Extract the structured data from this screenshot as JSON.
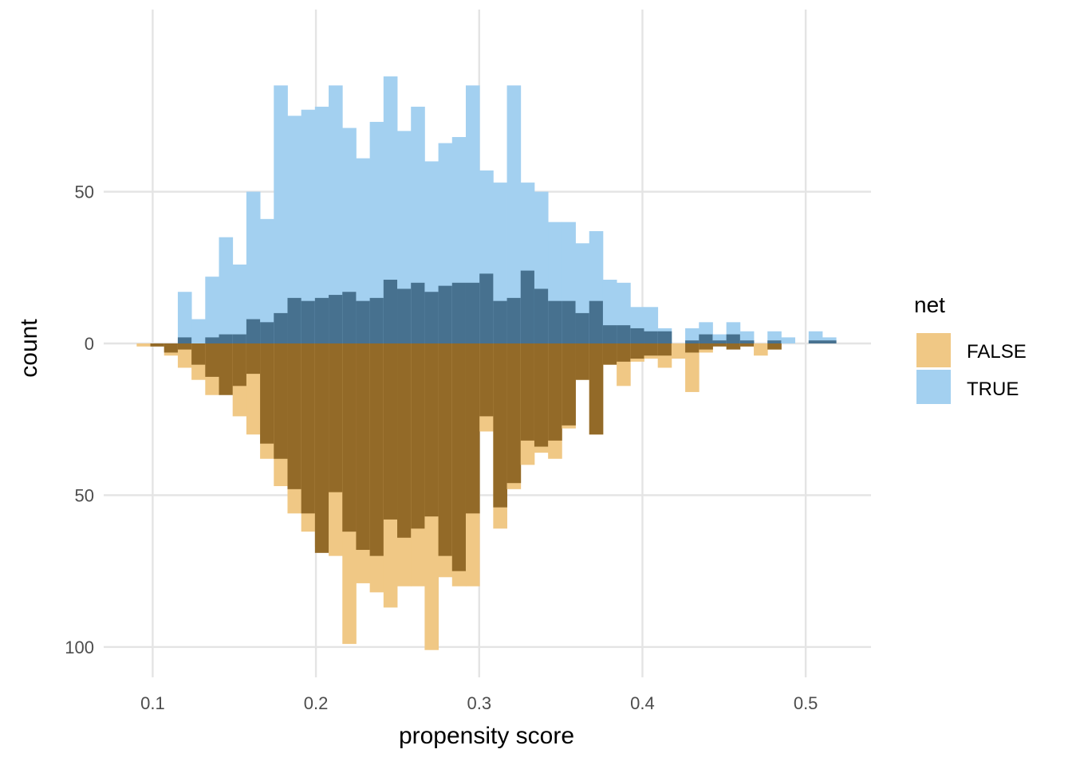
{
  "chart_data": {
    "type": "histogram-mirrored",
    "xlabel": "propensity score",
    "ylabel": "count",
    "xlim": [
      0.07,
      0.54
    ],
    "ylim": [
      -110,
      110
    ],
    "x_ticks": [
      0.1,
      0.2,
      0.3,
      0.4,
      0.5
    ],
    "x_tick_labels": [
      "0.1",
      "0.2",
      "0.3",
      "0.4",
      "0.5"
    ],
    "y_ticks": [
      50,
      0,
      -50,
      -100
    ],
    "y_tick_labels": [
      "50",
      "0",
      "50",
      "100"
    ],
    "grid": true,
    "legend": {
      "title": "net",
      "position": "right",
      "entries": [
        {
          "label": "FALSE",
          "color": "#E69F00"
        },
        {
          "label": "TRUE",
          "color": "#56B4E9"
        }
      ]
    },
    "bin_width": 0.0084,
    "bin_left_edges": [
      0.0902,
      0.0986,
      0.107,
      0.1154,
      0.1238,
      0.1322,
      0.1406,
      0.149,
      0.1574,
      0.1658,
      0.1742,
      0.1826,
      0.191,
      0.1994,
      0.2078,
      0.2162,
      0.2246,
      0.233,
      0.2414,
      0.2498,
      0.2582,
      0.2666,
      0.275,
      0.2834,
      0.2918,
      0.3002,
      0.3086,
      0.317,
      0.3254,
      0.3338,
      0.3422,
      0.3506,
      0.359,
      0.3674,
      0.3758,
      0.3842,
      0.3926,
      0.401,
      0.4094,
      0.4178,
      0.4262,
      0.4346,
      0.443,
      0.4514,
      0.4598,
      0.4682,
      0.4766,
      0.485,
      0.4934,
      0.5018,
      0.5102
    ],
    "series": [
      {
        "name": "TRUE",
        "position": "above",
        "total_counts": [
          0,
          0,
          0,
          17,
          8,
          22,
          35,
          26,
          50,
          41,
          85,
          75,
          77,
          78,
          85,
          71,
          61,
          73,
          88,
          70,
          78,
          60,
          66,
          68,
          85,
          57,
          53,
          85,
          53,
          50,
          40,
          40,
          33,
          37,
          21,
          20,
          12,
          12,
          5,
          0,
          5,
          7,
          3,
          7,
          4,
          0,
          4,
          2,
          0,
          4,
          2
        ],
        "matched_counts": [
          0,
          0,
          0,
          2,
          0,
          2,
          3,
          3,
          8,
          7,
          10,
          15,
          14,
          15,
          16,
          17,
          14,
          15,
          21,
          18,
          20,
          17,
          19,
          20,
          20,
          23,
          14,
          15,
          24,
          18,
          14,
          14,
          10,
          14,
          6,
          6,
          5,
          4,
          4,
          0,
          1,
          3,
          1,
          3,
          1,
          0,
          1,
          0,
          0,
          1,
          1
        ]
      },
      {
        "name": "FALSE",
        "position": "below",
        "total_counts": [
          1,
          1,
          4,
          8,
          12,
          17,
          16,
          24,
          30,
          38,
          47,
          56,
          62,
          67,
          70,
          99,
          79,
          82,
          87,
          80,
          80,
          101,
          77,
          80,
          80,
          29,
          61,
          48,
          40,
          36,
          38,
          28,
          12,
          30,
          7,
          14,
          6,
          5,
          8,
          5,
          16,
          3,
          0,
          1,
          1,
          4,
          2,
          0,
          0,
          0,
          0
        ],
        "matched_counts": [
          0,
          1,
          3,
          2,
          7,
          11,
          17,
          14,
          10,
          33,
          38,
          48,
          56,
          69,
          49,
          62,
          68,
          70,
          58,
          64,
          61,
          57,
          70,
          75,
          56,
          24,
          54,
          46,
          32,
          34,
          32,
          27,
          12,
          30,
          7,
          6,
          5,
          4,
          4,
          0,
          3,
          2,
          1,
          2,
          1,
          0,
          2,
          0,
          0,
          0,
          0
        ]
      }
    ],
    "colors": {
      "false_unmatched": "#F0C885",
      "false_matched": "#936A28",
      "true_unmatched": "#A3D0F0",
      "true_matched": "#47718F"
    }
  }
}
